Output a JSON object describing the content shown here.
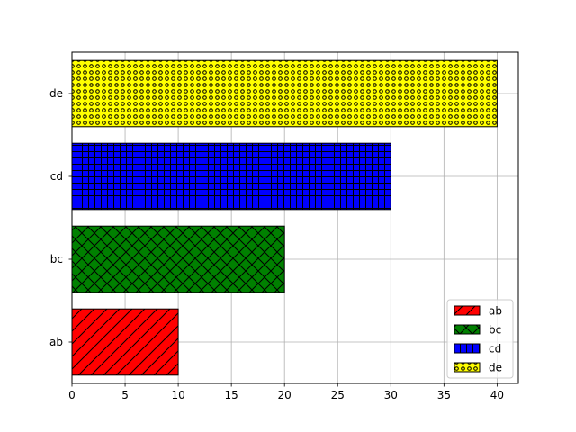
{
  "chart_data": {
    "type": "bar",
    "orientation": "horizontal",
    "categories": [
      "ab",
      "bc",
      "cd",
      "de"
    ],
    "values": [
      10,
      20,
      30,
      40
    ],
    "colors": [
      "#ff0000",
      "#008000",
      "#0000ff",
      "#ffff00"
    ],
    "hatches": [
      "diagonal",
      "crosshatch",
      "grid",
      "circles"
    ],
    "xlim": [
      0,
      42
    ],
    "xticks": [
      0,
      5,
      10,
      15,
      20,
      25,
      30,
      35,
      40
    ],
    "title": "",
    "xlabel": "",
    "ylabel": "",
    "grid": true,
    "legend": {
      "placement": "bottom-right",
      "entries": [
        "ab",
        "bc",
        "cd",
        "de"
      ]
    }
  }
}
